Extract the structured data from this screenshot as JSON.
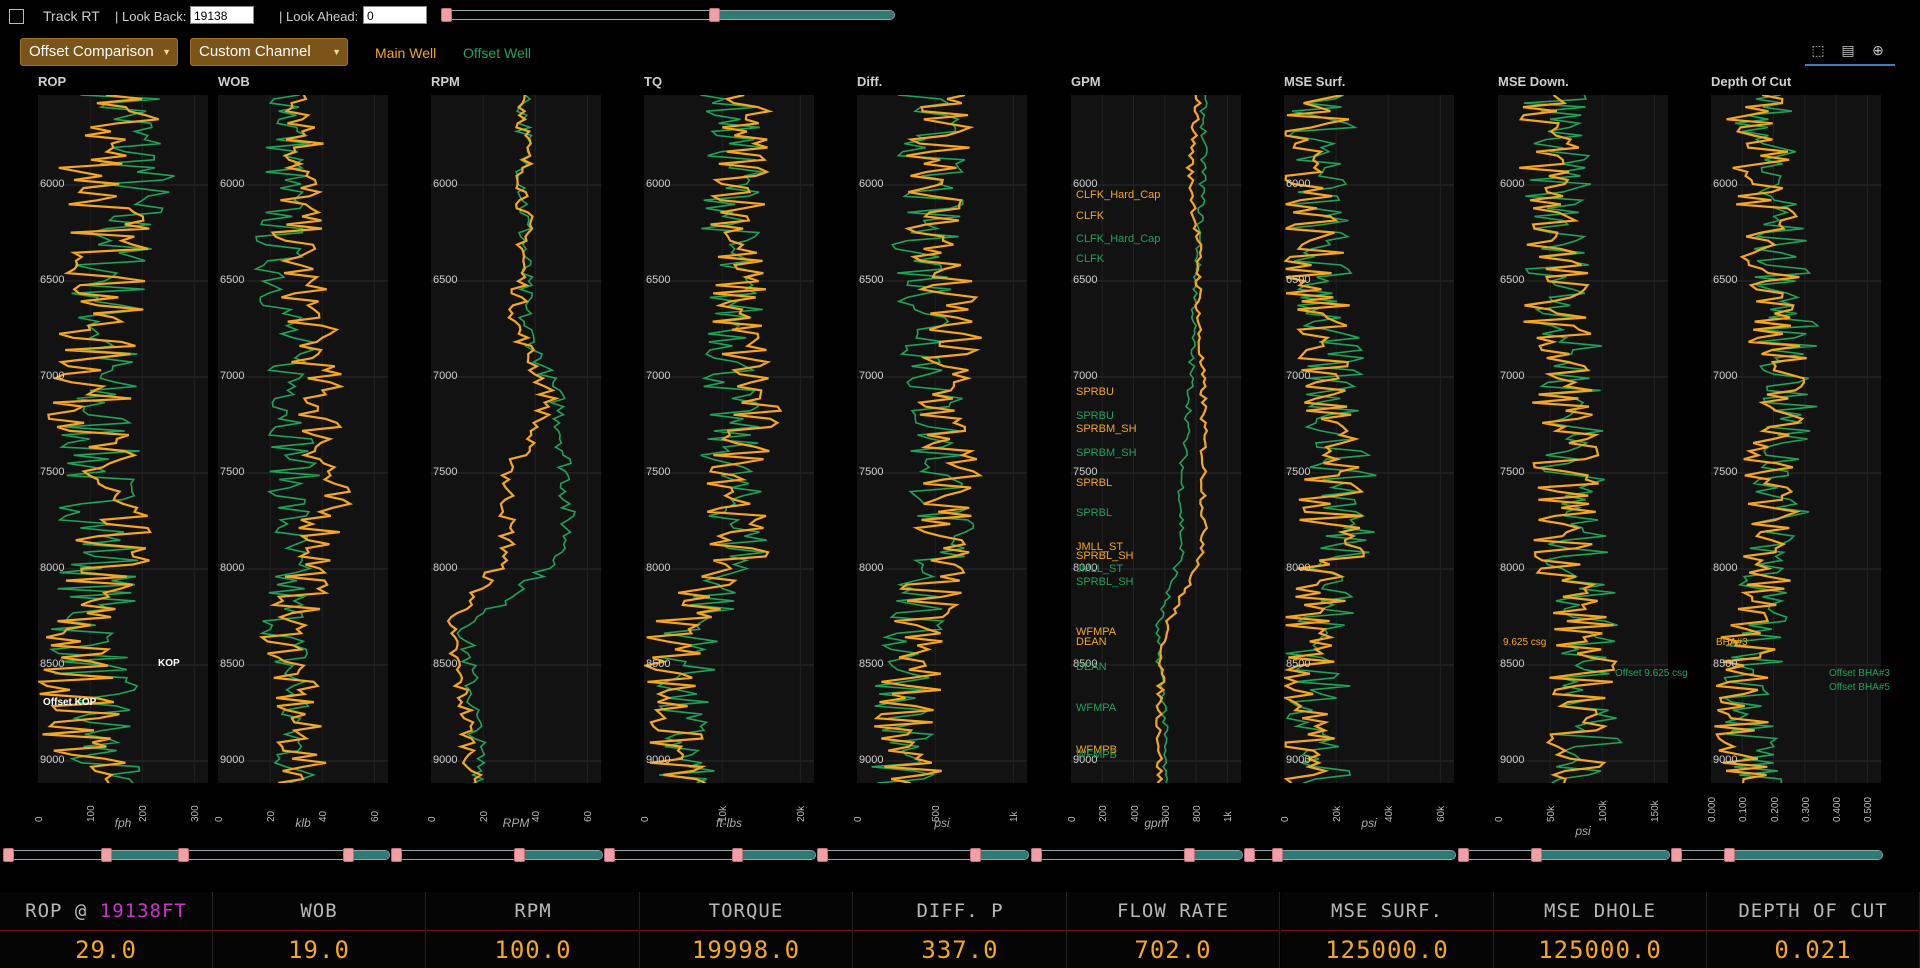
{
  "toolbar": {
    "track_rt_label": "Track RT",
    "look_back_label": "| Look Back:",
    "look_back_value": "19138",
    "look_ahead_label": "| Look Ahead:",
    "look_ahead_value": "0",
    "offset_dropdown": "Offset Comparison",
    "custom_dropdown": "Custom Channel",
    "main_well_label": "Main Well",
    "offset_well_label": "Offset Well"
  },
  "colors": {
    "main": "#f5a623",
    "offset": "#1fa35a",
    "panel_bg": "#121212",
    "accent": "#f5a623",
    "highlight": "#cc33cc"
  },
  "depth_ticks": [
    "6000",
    "6500",
    "7000",
    "7500",
    "8000",
    "8500",
    "9000"
  ],
  "tracks": [
    {
      "title": "ROP",
      "unit": "fph",
      "ticks": [
        "0",
        "100",
        "200",
        "300"
      ]
    },
    {
      "title": "WOB",
      "unit": "klb",
      "ticks": [
        "0",
        "20",
        "40",
        "60"
      ]
    },
    {
      "title": "RPM",
      "unit": "RPM",
      "ticks": [
        "0",
        "20",
        "40",
        "60"
      ]
    },
    {
      "title": "TQ",
      "unit": "ft-lbs",
      "ticks": [
        "0",
        "10k",
        "20k"
      ]
    },
    {
      "title": "Diff.",
      "unit": "psi",
      "ticks": [
        "0",
        "500",
        "1k"
      ]
    },
    {
      "title": "GPM",
      "unit": "gpm",
      "ticks": [
        "0",
        "200",
        "400",
        "600",
        "800",
        "1k"
      ]
    },
    {
      "title": "MSE Surf.",
      "unit": "psi",
      "ticks": [
        "0",
        "20k",
        "40k",
        "60k"
      ]
    },
    {
      "title": "MSE Down.",
      "unit": "psi",
      "ticks": [
        "0",
        "50k",
        "100k",
        "150k"
      ]
    },
    {
      "title": "Depth Of Cut",
      "unit": "",
      "ticks": [
        "0.000",
        "0.100",
        "0.200",
        "0.300",
        "0.400",
        "0.500"
      ]
    }
  ],
  "formations": [
    {
      "label": "CLFK_Hard_Cap",
      "well": "main"
    },
    {
      "label": "CLFK",
      "well": "main"
    },
    {
      "label": "CLFK_Hard_Cap",
      "well": "offset"
    },
    {
      "label": "CLFK",
      "well": "offset"
    },
    {
      "label": "SPRBU",
      "well": "main"
    },
    {
      "label": "SPRBU",
      "well": "offset"
    },
    {
      "label": "SPRBM_SH",
      "well": "main"
    },
    {
      "label": "SPRBM_SH",
      "well": "offset"
    },
    {
      "label": "SPRBL",
      "well": "main"
    },
    {
      "label": "SPRBL",
      "well": "offset"
    },
    {
      "label": "JMLL_ST",
      "well": "main"
    },
    {
      "label": "SPRBL_SH",
      "well": "main"
    },
    {
      "label": "JMLL_ST",
      "well": "offset"
    },
    {
      "label": "SPRBL_SH",
      "well": "offset"
    },
    {
      "label": "WFMPA",
      "well": "main"
    },
    {
      "label": "DEAN",
      "well": "main"
    },
    {
      "label": "DEAN",
      "well": "offset"
    },
    {
      "label": "WFMPA",
      "well": "offset"
    },
    {
      "label": "WFMPB",
      "well": "main"
    },
    {
      "label": "WFMPB",
      "well": "offset"
    }
  ],
  "annotations": {
    "kop": "KOP",
    "offset_kop": "Offset KOP",
    "csg_main": "9.625 csg",
    "csg_offset": "Offset 9.625 csg",
    "bha_main": "BHA#3",
    "bha_offset_3": "Offset BHA#3",
    "bha_offset_5": "Offset BHA#5"
  },
  "readouts": [
    {
      "label_prefix": "ROP @ ",
      "label_highlight": "19138FT",
      "value": "29.0"
    },
    {
      "label": "WOB",
      "value": "19.0"
    },
    {
      "label": "RPM",
      "value": "100.0"
    },
    {
      "label": "TORQUE",
      "value": "19998.0"
    },
    {
      "label": "DIFF. P",
      "value": "337.0"
    },
    {
      "label": "FLOW RATE",
      "value": "702.0"
    },
    {
      "label": "MSE SURF.",
      "value": "125000.0"
    },
    {
      "label": "MSE DHOLE",
      "value": "125000.0"
    },
    {
      "label": "DEPTH OF CUT",
      "value": "0.021"
    }
  ]
}
